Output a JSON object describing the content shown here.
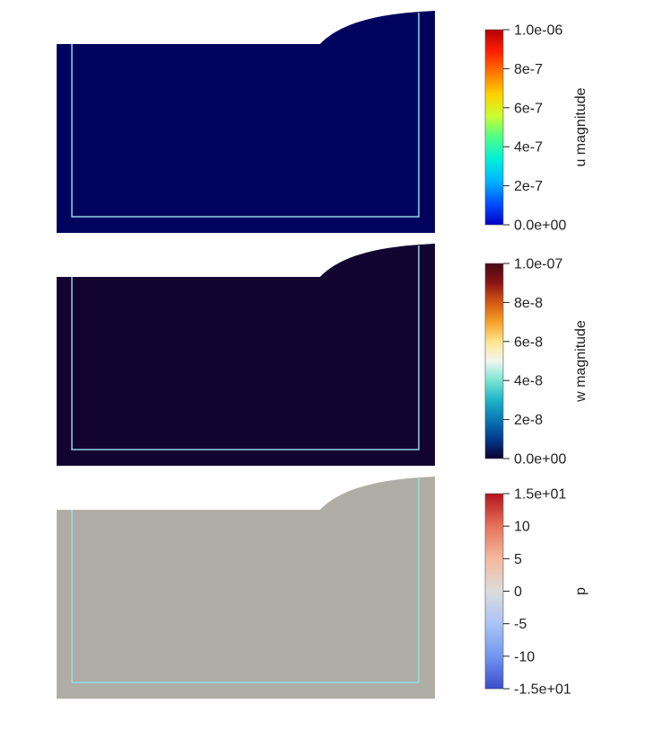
{
  "panels": [
    {
      "id": "u",
      "field": "u magnitude",
      "domain_color": "#00035d",
      "boundary_color": "#8fd3e8",
      "colorbar": {
        "title": "u magnitude",
        "colors": [
          "#0000c8",
          "#0050ff",
          "#00b4ff",
          "#00eedc",
          "#4aff8a",
          "#c8ff32",
          "#ffd200",
          "#ff7800",
          "#ff1e00",
          "#b40000"
        ],
        "ticks": [
          {
            "value": 0.0,
            "label": "0.0e+00"
          },
          {
            "value": 2e-07,
            "label": "2e-7"
          },
          {
            "value": 4e-07,
            "label": "4e-7"
          },
          {
            "value": 6e-07,
            "label": "6e-7"
          },
          {
            "value": 8e-07,
            "label": "8e-7"
          },
          {
            "value": 1e-06,
            "label": "1.0e-06"
          }
        ],
        "range": [
          0.0,
          1e-06
        ]
      }
    },
    {
      "id": "w",
      "field": "w magnitude",
      "domain_color": "#120331",
      "boundary_color": "#8fd3e8",
      "colorbar": {
        "title": "w magnitude",
        "colors": [
          "#0a0032",
          "#003a8c",
          "#0a78b4",
          "#1eb4c8",
          "#78e6d2",
          "#f0f5f0",
          "#ffe68c",
          "#f5a028",
          "#d25a14",
          "#8c1414",
          "#460a14"
        ],
        "ticks": [
          {
            "value": 0.0,
            "label": "0.0e+00"
          },
          {
            "value": 2e-08,
            "label": "2e-8"
          },
          {
            "value": 4e-08,
            "label": "4e-8"
          },
          {
            "value": 6e-08,
            "label": "6e-8"
          },
          {
            "value": 8e-08,
            "label": "8e-8"
          },
          {
            "value": 1e-07,
            "label": "1.0e-07"
          }
        ],
        "range": [
          0.0,
          1e-07
        ]
      }
    },
    {
      "id": "p",
      "field": "p",
      "domain_color": "#afada6",
      "boundary_color": "#8fe0e8",
      "colorbar": {
        "title": "p",
        "colors": [
          "#3c4cc8",
          "#7396f0",
          "#aac3f5",
          "#dcdcdc",
          "#f5b9a0",
          "#e6735a",
          "#b4141e"
        ],
        "ticks": [
          {
            "value": -15,
            "label": "-1.5e+01"
          },
          {
            "value": -10,
            "label": "-10"
          },
          {
            "value": -5,
            "label": "-5"
          },
          {
            "value": 0,
            "label": "0"
          },
          {
            "value": 5,
            "label": "5"
          },
          {
            "value": 10,
            "label": "10"
          },
          {
            "value": 15,
            "label": "1.5e+01"
          }
        ],
        "range": [
          -15,
          15
        ]
      }
    }
  ]
}
